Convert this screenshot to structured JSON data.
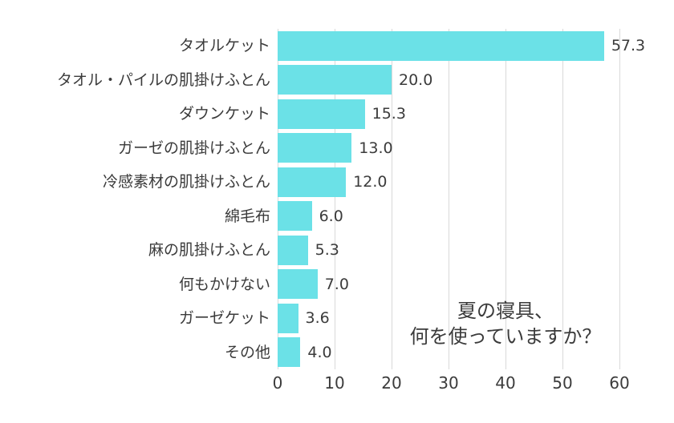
{
  "chart_data": {
    "type": "bar",
    "orientation": "horizontal",
    "title": "夏の寝具、何を使っていますか？",
    "annotation": {
      "line1": "夏の寝具、",
      "line2": "何を使っていますか？"
    },
    "categories": [
      "タオルケット",
      "タオル・パイルの肌掛けふとん",
      "ダウンケット",
      "ガーゼの肌掛けふとん",
      "冷感素材の肌掛けふとん",
      "綿毛布",
      "麻の肌掛けふとん",
      "何もかけない",
      "ガーゼケット",
      "その他"
    ],
    "values": [
      57.3,
      20.0,
      15.3,
      13.0,
      12.0,
      6.0,
      5.3,
      7.0,
      3.6,
      4.0
    ],
    "value_labels": [
      "57.3",
      "20.0",
      "15.3",
      "13.0",
      "12.0",
      "6.0",
      "5.3",
      "7.0",
      "3.6",
      "4.0"
    ],
    "xlim": [
      0,
      60
    ],
    "x_ticks": [
      "0",
      "10",
      "20",
      "30",
      "40",
      "50",
      "60"
    ],
    "grid": "vertical",
    "legend": "none",
    "colors": {
      "bar": "#6be1e7",
      "grid": "#d9d9d9",
      "text": "#3b3b3b",
      "background": "#ffffff"
    }
  }
}
